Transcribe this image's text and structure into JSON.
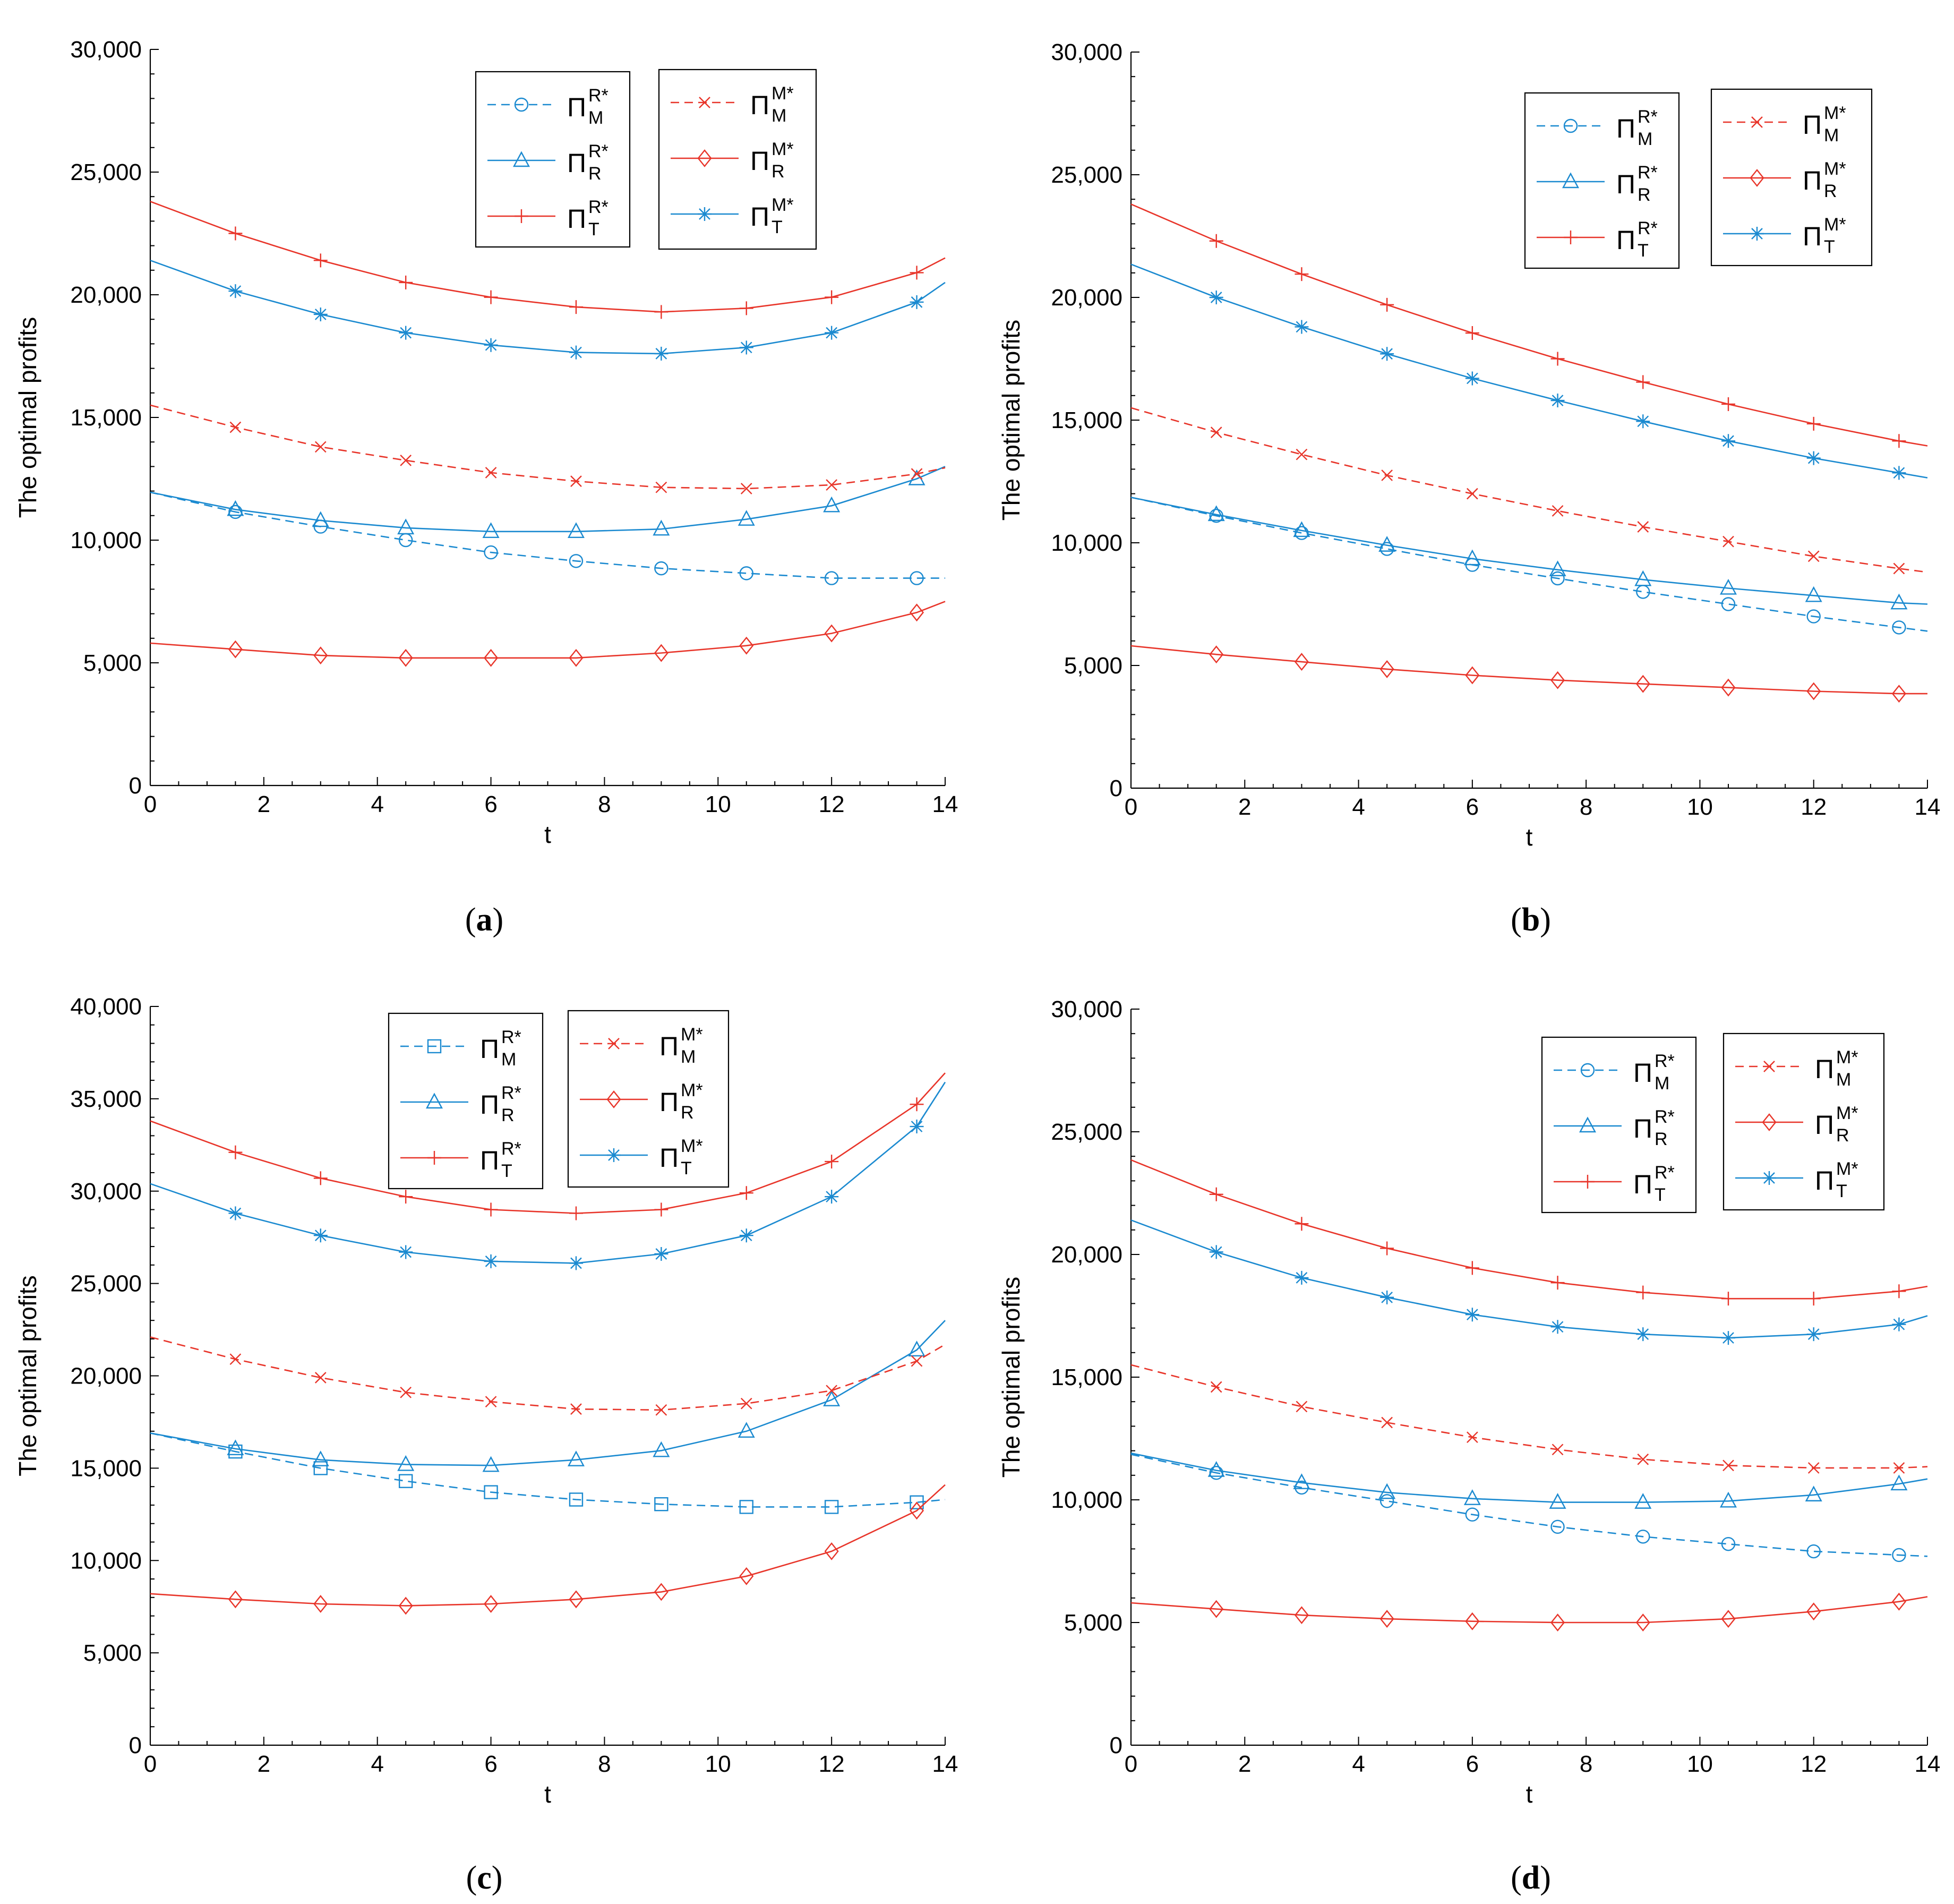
{
  "figure": {
    "axis_label_x": "t",
    "axis_label_y": "The optimal profits",
    "legend_symbol": "Π",
    "legend_star": "*",
    "colors": {
      "blue": "#1b8ad0",
      "red": "#e8352a"
    }
  },
  "chart_data": [
    {
      "type": "line",
      "caption_letter": "a",
      "caption": "(a)",
      "xlabel": "t",
      "ylabel": "The optimal profits",
      "xlim": [
        0,
        14
      ],
      "ylim": [
        0,
        30000
      ],
      "xticks": [
        0,
        2,
        4,
        6,
        8,
        10,
        12,
        14
      ],
      "yticks": [
        0,
        5000,
        10000,
        15000,
        20000,
        25000,
        30000
      ],
      "ytick_labels": [
        "0",
        "5,000",
        "10,000",
        "15,000",
        "20,000",
        "25,000",
        "30,000"
      ],
      "x": [
        0,
        1.5,
        3,
        4.5,
        6,
        7.5,
        9,
        10.5,
        12,
        13.5,
        14
      ],
      "series": [
        {
          "name": "Π_M^{R*}",
          "sub": "M",
          "sup": "R*",
          "color": "blue",
          "dash": "dashed",
          "marker": "circle",
          "values": [
            11950,
            11150,
            10550,
            10000,
            9500,
            9150,
            8850,
            8650,
            8450,
            8450,
            8450
          ]
        },
        {
          "name": "Π_R^{R*}",
          "sub": "R",
          "sup": "R*",
          "color": "blue",
          "dash": "solid",
          "marker": "triangle",
          "values": [
            11950,
            11250,
            10800,
            10500,
            10350,
            10350,
            10450,
            10850,
            11400,
            12500,
            13000
          ]
        },
        {
          "name": "Π_T^{R*}",
          "sub": "T",
          "sup": "R*",
          "color": "red",
          "dash": "solid",
          "marker": "plus",
          "values": [
            23800,
            22500,
            21400,
            20500,
            19900,
            19500,
            19300,
            19450,
            19900,
            20900,
            21500
          ]
        },
        {
          "name": "Π_M^{M*}",
          "sub": "M",
          "sup": "M*",
          "color": "red",
          "dash": "dashed",
          "marker": "x",
          "values": [
            15500,
            14600,
            13800,
            13250,
            12750,
            12400,
            12150,
            12100,
            12250,
            12700,
            12950
          ]
        },
        {
          "name": "Π_R^{M*}",
          "sub": "R",
          "sup": "M*",
          "color": "red",
          "dash": "solid",
          "marker": "diamond",
          "values": [
            5800,
            5550,
            5300,
            5200,
            5200,
            5200,
            5400,
            5700,
            6200,
            7050,
            7500
          ]
        },
        {
          "name": "Π_T^{M*}",
          "sub": "T",
          "sup": "M*",
          "color": "blue",
          "dash": "solid",
          "marker": "asterisk",
          "values": [
            21400,
            20150,
            19200,
            18450,
            17950,
            17650,
            17600,
            17850,
            18450,
            19700,
            20500
          ]
        }
      ]
    },
    {
      "type": "line",
      "caption_letter": "b",
      "caption": "(b)",
      "xlabel": "t",
      "ylabel": "The optimal profits",
      "xlim": [
        0,
        14
      ],
      "ylim": [
        0,
        30000
      ],
      "xticks": [
        0,
        2,
        4,
        6,
        8,
        10,
        12,
        14
      ],
      "yticks": [
        0,
        5000,
        10000,
        15000,
        20000,
        25000,
        30000
      ],
      "ytick_labels": [
        "0",
        "5,000",
        "10,000",
        "15,000",
        "20,000",
        "25,000",
        "30,000"
      ],
      "x": [
        0,
        1.5,
        3,
        4.5,
        6,
        7.5,
        9,
        10.5,
        12,
        13.5,
        14
      ],
      "series": [
        {
          "name": "Π_M^{R*}",
          "sub": "M",
          "sup": "R*",
          "color": "blue",
          "dash": "dashed",
          "marker": "circle",
          "values": [
            11850,
            11100,
            10400,
            9750,
            9100,
            8550,
            8000,
            7500,
            7000,
            6550,
            6400
          ]
        },
        {
          "name": "Π_R^{R*}",
          "sub": "R",
          "sup": "R*",
          "color": "blue",
          "dash": "solid",
          "marker": "triangle",
          "values": [
            11850,
            11150,
            10500,
            9900,
            9350,
            8900,
            8500,
            8150,
            7850,
            7550,
            7500
          ]
        },
        {
          "name": "Π_T^{R*}",
          "sub": "T",
          "sup": "R*",
          "color": "red",
          "dash": "solid",
          "marker": "plus",
          "values": [
            23800,
            22300,
            20950,
            19700,
            18550,
            17500,
            16550,
            15650,
            14850,
            14150,
            13950
          ]
        },
        {
          "name": "Π_M^{M*}",
          "sub": "M",
          "sup": "M*",
          "color": "red",
          "dash": "dashed",
          "marker": "x",
          "values": [
            15500,
            14500,
            13600,
            12750,
            12000,
            11300,
            10650,
            10050,
            9450,
            8950,
            8800
          ]
        },
        {
          "name": "Π_R^{M*}",
          "sub": "R",
          "sup": "M*",
          "color": "red",
          "dash": "solid",
          "marker": "diamond",
          "values": [
            5800,
            5450,
            5150,
            4850,
            4600,
            4400,
            4250,
            4100,
            3950,
            3850,
            3850
          ]
        },
        {
          "name": "Π_T^{M*}",
          "sub": "T",
          "sup": "M*",
          "color": "blue",
          "dash": "solid",
          "marker": "asterisk",
          "values": [
            21350,
            20000,
            18800,
            17700,
            16700,
            15800,
            14950,
            14150,
            13450,
            12850,
            12650
          ]
        }
      ]
    },
    {
      "type": "line",
      "caption_letter": "c",
      "caption": "(c)",
      "xlabel": "t",
      "ylabel": "The optimal profits",
      "xlim": [
        0,
        14
      ],
      "ylim": [
        0,
        40000
      ],
      "xticks": [
        0,
        2,
        4,
        6,
        8,
        10,
        12,
        14
      ],
      "yticks": [
        0,
        5000,
        10000,
        15000,
        20000,
        25000,
        30000,
        35000,
        40000
      ],
      "ytick_labels": [
        "0",
        "5,000",
        "10,000",
        "15,000",
        "20,000",
        "25,000",
        "30,000",
        "35,000",
        "40,000"
      ],
      "x": [
        0,
        1.5,
        3,
        4.5,
        6,
        7.5,
        9,
        10.5,
        12,
        13.5,
        14
      ],
      "series": [
        {
          "name": "Π_M^{R*}",
          "sub": "M",
          "sup": "R*",
          "color": "blue",
          "dash": "dashed",
          "marker": "square",
          "values": [
            16900,
            15900,
            15000,
            14300,
            13700,
            13300,
            13050,
            12900,
            12900,
            13150,
            13300
          ]
        },
        {
          "name": "Π_R^{R*}",
          "sub": "R",
          "sup": "R*",
          "color": "blue",
          "dash": "solid",
          "marker": "triangle",
          "values": [
            16900,
            16050,
            15450,
            15200,
            15150,
            15450,
            15950,
            17000,
            18700,
            21400,
            23000
          ]
        },
        {
          "name": "Π_T^{R*}",
          "sub": "T",
          "sup": "R*",
          "color": "red",
          "dash": "solid",
          "marker": "plus",
          "values": [
            33800,
            32100,
            30700,
            29700,
            29000,
            28800,
            29000,
            29900,
            31600,
            34700,
            36400
          ]
        },
        {
          "name": "Π_M^{M*}",
          "sub": "M",
          "sup": "M*",
          "color": "red",
          "dash": "dashed",
          "marker": "x",
          "values": [
            22100,
            20900,
            19900,
            19100,
            18600,
            18200,
            18150,
            18500,
            19200,
            20800,
            21700
          ]
        },
        {
          "name": "Π_R^{M*}",
          "sub": "R",
          "sup": "M*",
          "color": "red",
          "dash": "solid",
          "marker": "diamond",
          "values": [
            8200,
            7900,
            7650,
            7550,
            7650,
            7900,
            8300,
            9150,
            10500,
            12700,
            14100
          ]
        },
        {
          "name": "Π_T^{M*}",
          "sub": "T",
          "sup": "M*",
          "color": "blue",
          "dash": "solid",
          "marker": "asterisk",
          "values": [
            30400,
            28800,
            27600,
            26700,
            26200,
            26100,
            26600,
            27600,
            29700,
            33500,
            35900
          ]
        }
      ]
    },
    {
      "type": "line",
      "caption_letter": "d",
      "caption": "(d)",
      "xlabel": "t",
      "ylabel": "The optimal profits",
      "xlim": [
        0,
        14
      ],
      "ylim": [
        0,
        30000
      ],
      "xticks": [
        0,
        2,
        4,
        6,
        8,
        10,
        12,
        14
      ],
      "yticks": [
        0,
        5000,
        10000,
        15000,
        20000,
        25000,
        30000
      ],
      "ytick_labels": [
        "0",
        "5,000",
        "10,000",
        "15,000",
        "20,000",
        "25,000",
        "30,000"
      ],
      "x": [
        0,
        1.5,
        3,
        4.5,
        6,
        7.5,
        9,
        10.5,
        12,
        13.5,
        14
      ],
      "series": [
        {
          "name": "Π_M^{R*}",
          "sub": "M",
          "sup": "R*",
          "color": "blue",
          "dash": "dashed",
          "marker": "circle",
          "values": [
            11850,
            11100,
            10500,
            9950,
            9400,
            8900,
            8500,
            8200,
            7900,
            7750,
            7700
          ]
        },
        {
          "name": "Π_R^{R*}",
          "sub": "R",
          "sup": "R*",
          "color": "blue",
          "dash": "solid",
          "marker": "triangle",
          "values": [
            11900,
            11200,
            10700,
            10300,
            10050,
            9900,
            9900,
            9950,
            10200,
            10650,
            10850
          ]
        },
        {
          "name": "Π_T^{R*}",
          "sub": "T",
          "sup": "R*",
          "color": "red",
          "dash": "solid",
          "marker": "plus",
          "values": [
            23850,
            22450,
            21250,
            20250,
            19450,
            18850,
            18450,
            18200,
            18200,
            18500,
            18700
          ]
        },
        {
          "name": "Π_M^{M*}",
          "sub": "M",
          "sup": "M*",
          "color": "red",
          "dash": "dashed",
          "marker": "x",
          "values": [
            15500,
            14600,
            13800,
            13150,
            12550,
            12050,
            11650,
            11400,
            11300,
            11300,
            11350
          ]
        },
        {
          "name": "Π_R^{M*}",
          "sub": "R",
          "sup": "M*",
          "color": "red",
          "dash": "solid",
          "marker": "diamond",
          "values": [
            5800,
            5550,
            5300,
            5150,
            5050,
            5000,
            5000,
            5150,
            5450,
            5850,
            6050
          ]
        },
        {
          "name": "Π_T^{M*}",
          "sub": "T",
          "sup": "M*",
          "color": "blue",
          "dash": "solid",
          "marker": "asterisk",
          "values": [
            21400,
            20100,
            19050,
            18250,
            17550,
            17050,
            16750,
            16600,
            16750,
            17150,
            17500
          ]
        }
      ]
    }
  ]
}
